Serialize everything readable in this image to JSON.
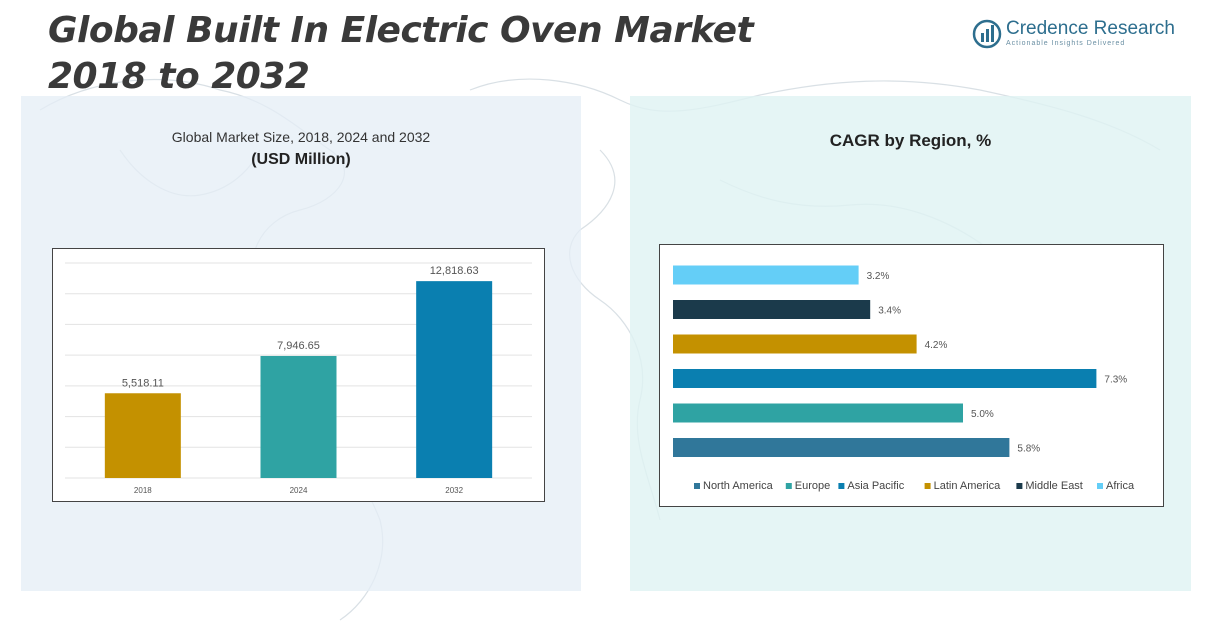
{
  "title_line1": "Global Built In Electric Oven Market",
  "title_line2": "2018 to 2032",
  "logo": {
    "brand": "Credence Research",
    "tagline": "Actionable Insights Delivered"
  },
  "left_panel": {
    "subtitle": "Global Market Size, 2018, 2024 and 2032",
    "unit": "(USD Million)"
  },
  "right_panel": {
    "title": "CAGR by Region, %"
  },
  "colors": {
    "gold": "#c49100",
    "teal": "#2fa3a3",
    "blue": "#0a7fb0",
    "dark": "#1b3a4b",
    "sky": "#64cef7",
    "steel": "#30779a"
  },
  "chart_data": [
    {
      "type": "bar",
      "title": "Global Market Size, 2018, 2024 and 2032",
      "ylabel": "(USD Million)",
      "categories": [
        "2018",
        "2024",
        "2032"
      ],
      "values": [
        5518.11,
        7946.65,
        12818.63
      ],
      "data_labels": [
        "5,518.11",
        "7,946.65",
        "12,818.63"
      ],
      "bar_colors": [
        "#c49100",
        "#2fa3a3",
        "#0a7fb0"
      ],
      "ylim": [
        0,
        14000
      ],
      "grid": true
    },
    {
      "type": "bar",
      "orientation": "horizontal",
      "title": "CAGR by Region, %",
      "series": [
        {
          "name": "North America",
          "value": 5.8,
          "label": "5.8%",
          "color": "#30779a"
        },
        {
          "name": "Europe",
          "value": 5.0,
          "label": "5.0%",
          "color": "#2fa3a3"
        },
        {
          "name": "Asia Pacific",
          "value": 7.3,
          "label": "7.3%",
          "color": "#0a7fb0"
        },
        {
          "name": "Latin America",
          "value": 4.2,
          "label": "4.2%",
          "color": "#c49100"
        },
        {
          "name": "Middle East",
          "value": 3.4,
          "label": "3.4%",
          "color": "#1b3a4b"
        },
        {
          "name": "Africa",
          "value": 3.2,
          "label": "3.2%",
          "color": "#64cef7"
        }
      ],
      "xlim": [
        0,
        7.5
      ],
      "legend_position": "bottom",
      "grid": false
    }
  ]
}
